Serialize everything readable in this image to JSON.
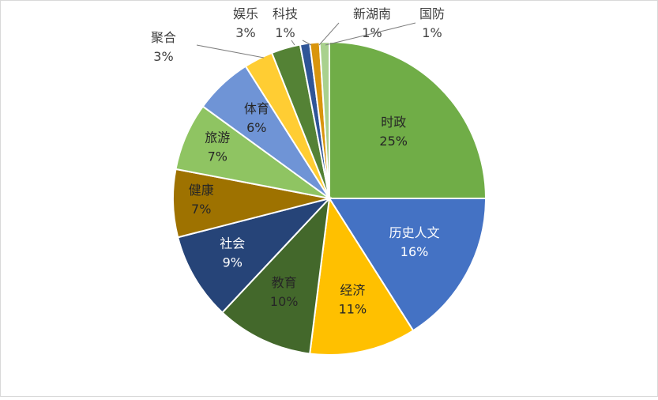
{
  "chart_data": {
    "type": "pie",
    "title": "",
    "slices": [
      {
        "label": "时政",
        "value": 25,
        "value_label": "25%",
        "color": "#70ad47"
      },
      {
        "label": "历史人文",
        "value": 16,
        "value_label": "16%",
        "color": "#4472c4"
      },
      {
        "label": "经济",
        "value": 11,
        "value_label": "11%",
        "color": "#ffc000"
      },
      {
        "label": "教育",
        "value": 10,
        "value_label": "10%",
        "color": "#43682b"
      },
      {
        "label": "社会",
        "value": 9,
        "value_label": "9%",
        "color": "#264478"
      },
      {
        "label": "健康",
        "value": 7,
        "value_label": "7%",
        "color": "#9e7200"
      },
      {
        "label": "旅游",
        "value": 7,
        "value_label": "7%",
        "color": "#8fc462"
      },
      {
        "label": "体育",
        "value": 6,
        "value_label": "6%",
        "color": "#6f94d6"
      },
      {
        "label": "聚合",
        "value": 3,
        "value_label": "3%",
        "color": "#ffcd33"
      },
      {
        "label": "娱乐",
        "value": 3,
        "value_label": "3%",
        "color": "#548235"
      },
      {
        "label": "科技",
        "value": 1,
        "value_label": "1%",
        "color": "#2f5597"
      },
      {
        "label": "新湖南",
        "value": 1,
        "value_label": "1%",
        "color": "#d9950d"
      },
      {
        "label": "国防",
        "value": 1,
        "value_label": "1%",
        "color": "#a9d18e"
      }
    ]
  }
}
